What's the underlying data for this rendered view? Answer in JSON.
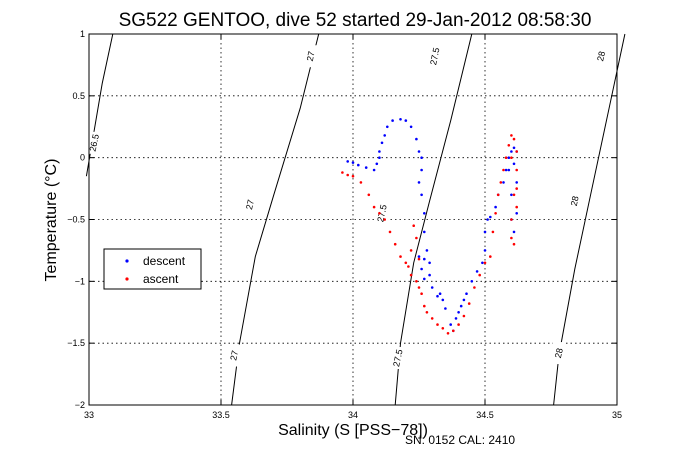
{
  "figure": {
    "title": "SG522 GENTOO, dive 52 started 29-Jan-2012 08:58:30",
    "footer": "SN: 0152  CAL: 2410"
  },
  "chart_data": {
    "type": "scatter",
    "title": "SG522 GENTOO, dive 52 started 29-Jan-2012 08:58:30",
    "xlabel": "Salinity (S [PSS−78])",
    "ylabel": "Temperature (°C)",
    "xlim": [
      33,
      35
    ],
    "ylim": [
      -2,
      1
    ],
    "xticks": [
      33,
      33.5,
      34,
      34.5,
      35
    ],
    "xtick_labels": [
      "33",
      "33.5",
      "34",
      "34.5",
      "35"
    ],
    "yticks": [
      -2,
      -1.5,
      -1,
      -0.5,
      0,
      0.5,
      1
    ],
    "ytick_labels": [
      "−2",
      "−1.5",
      "−1",
      "−0.5",
      "0",
      "0.5",
      "1"
    ],
    "grid": true,
    "legend_position": "left",
    "isopycnals": [
      {
        "label": "26.5",
        "points": [
          [
            32.99,
            -0.15
          ],
          [
            33.05,
            0.6
          ],
          [
            33.09,
            1.0
          ]
        ],
        "labels": [
          [
            33.02,
            0.12
          ]
        ]
      },
      {
        "label": "27",
        "points": [
          [
            33.54,
            -2.0
          ],
          [
            33.57,
            -1.5
          ],
          [
            33.63,
            -0.8
          ],
          [
            33.7,
            -0.3
          ],
          [
            33.8,
            0.4
          ],
          [
            33.87,
            1.0
          ]
        ],
        "labels": [
          [
            33.55,
            -1.6
          ],
          [
            33.61,
            -0.38
          ],
          [
            33.84,
            0.82
          ]
        ]
      },
      {
        "label": "27.5",
        "points": [
          [
            34.16,
            -2.0
          ],
          [
            34.18,
            -1.5
          ],
          [
            34.23,
            -0.85
          ],
          [
            34.29,
            -0.35
          ],
          [
            34.37,
            0.3
          ],
          [
            34.45,
            1.0
          ]
        ],
        "labels": [
          [
            34.17,
            -1.62
          ],
          [
            34.11,
            -0.45
          ],
          [
            34.31,
            0.82
          ]
        ]
      },
      {
        "label": "28",
        "points": [
          [
            34.76,
            -2.0
          ],
          [
            34.78,
            -1.6
          ],
          [
            34.84,
            -0.9
          ],
          [
            34.9,
            -0.3
          ],
          [
            34.97,
            0.4
          ],
          [
            35.03,
            1.0
          ]
        ],
        "labels": [
          [
            34.78,
            -1.58
          ],
          [
            34.84,
            -0.35
          ],
          [
            34.94,
            0.82
          ]
        ]
      }
    ],
    "series": [
      {
        "name": "descent",
        "color": "#0000ff",
        "points": [
          [
            33.98,
            -0.03
          ],
          [
            34.0,
            -0.04
          ],
          [
            34.02,
            -0.06
          ],
          [
            34.05,
            -0.08
          ],
          [
            34.08,
            -0.1
          ],
          [
            34.09,
            -0.05
          ],
          [
            34.1,
            0.0
          ],
          [
            34.1,
            0.05
          ],
          [
            34.11,
            0.12
          ],
          [
            34.12,
            0.18
          ],
          [
            34.13,
            0.25
          ],
          [
            34.15,
            0.3
          ],
          [
            34.18,
            0.31
          ],
          [
            34.2,
            0.3
          ],
          [
            34.22,
            0.25
          ],
          [
            34.24,
            0.15
          ],
          [
            34.25,
            0.05
          ],
          [
            34.26,
            0.0
          ],
          [
            34.26,
            -0.1
          ],
          [
            34.25,
            -0.2
          ],
          [
            34.26,
            -0.3
          ],
          [
            34.27,
            -0.45
          ],
          [
            34.27,
            -0.6
          ],
          [
            34.28,
            -0.75
          ],
          [
            34.29,
            -0.85
          ],
          [
            34.29,
            -0.95
          ],
          [
            34.27,
            -0.82
          ],
          [
            34.25,
            -0.8
          ],
          [
            34.26,
            -0.9
          ],
          [
            34.27,
            -0.98
          ],
          [
            34.3,
            -1.05
          ],
          [
            34.32,
            -1.12
          ],
          [
            34.33,
            -1.1
          ],
          [
            34.34,
            -1.15
          ],
          [
            34.35,
            -1.22
          ],
          [
            34.37,
            -1.35
          ],
          [
            34.38,
            -1.4
          ],
          [
            34.39,
            -1.3
          ],
          [
            34.4,
            -1.25
          ],
          [
            34.41,
            -1.2
          ],
          [
            34.42,
            -1.15
          ],
          [
            34.43,
            -1.1
          ],
          [
            34.45,
            -1.0
          ],
          [
            34.47,
            -0.92
          ],
          [
            34.49,
            -0.85
          ],
          [
            34.5,
            -0.75
          ],
          [
            34.5,
            -0.6
          ],
          [
            34.51,
            -0.5
          ],
          [
            34.52,
            -0.48
          ],
          [
            34.54,
            -0.4
          ],
          [
            34.55,
            -0.3
          ],
          [
            34.57,
            -0.2
          ],
          [
            34.58,
            -0.1
          ],
          [
            34.59,
            0.0
          ],
          [
            34.6,
            0.05
          ],
          [
            34.61,
            0.08
          ],
          [
            34.62,
            0.05
          ],
          [
            34.61,
            -0.05
          ],
          [
            34.62,
            -0.2
          ],
          [
            34.62,
            -0.45
          ],
          [
            34.61,
            -0.6
          ],
          [
            34.6,
            -0.5
          ],
          [
            34.6,
            -0.3
          ],
          [
            34.59,
            -0.1
          ]
        ]
      },
      {
        "name": "ascent",
        "color": "#ff0000",
        "points": [
          [
            33.96,
            -0.12
          ],
          [
            33.98,
            -0.14
          ],
          [
            34.0,
            -0.15
          ],
          [
            34.03,
            -0.2
          ],
          [
            34.06,
            -0.3
          ],
          [
            34.08,
            -0.4
          ],
          [
            34.1,
            -0.45
          ],
          [
            34.12,
            -0.5
          ],
          [
            34.14,
            -0.6
          ],
          [
            34.16,
            -0.7
          ],
          [
            34.18,
            -0.8
          ],
          [
            34.2,
            -0.85
          ],
          [
            34.21,
            -0.88
          ],
          [
            34.22,
            -0.95
          ],
          [
            34.22,
            -0.75
          ],
          [
            34.24,
            -0.65
          ],
          [
            34.23,
            -0.55
          ],
          [
            34.25,
            -0.82
          ],
          [
            34.24,
            -1.0
          ],
          [
            34.25,
            -1.05
          ],
          [
            34.26,
            -1.1
          ],
          [
            34.27,
            -1.2
          ],
          [
            34.28,
            -1.25
          ],
          [
            34.3,
            -1.3
          ],
          [
            34.32,
            -1.35
          ],
          [
            34.34,
            -1.38
          ],
          [
            34.36,
            -1.42
          ],
          [
            34.38,
            -1.4
          ],
          [
            34.4,
            -1.35
          ],
          [
            34.42,
            -1.28
          ],
          [
            34.44,
            -1.18
          ],
          [
            34.46,
            -1.05
          ],
          [
            34.48,
            -0.95
          ],
          [
            34.5,
            -0.85
          ],
          [
            34.52,
            -0.8
          ],
          [
            34.53,
            -0.6
          ],
          [
            34.54,
            -0.45
          ],
          [
            34.55,
            -0.3
          ],
          [
            34.56,
            -0.2
          ],
          [
            34.57,
            -0.1
          ],
          [
            34.58,
            0.0
          ],
          [
            34.59,
            0.1
          ],
          [
            34.6,
            0.18
          ],
          [
            34.61,
            0.15
          ],
          [
            34.62,
            0.05
          ],
          [
            34.62,
            -0.1
          ],
          [
            34.61,
            -0.3
          ],
          [
            34.6,
            -0.5
          ],
          [
            34.6,
            -0.65
          ],
          [
            34.61,
            -0.7
          ],
          [
            34.62,
            -0.4
          ],
          [
            34.62,
            -0.25
          ],
          [
            34.6,
            0.0
          ]
        ]
      }
    ]
  }
}
